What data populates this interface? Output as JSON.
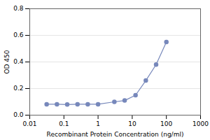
{
  "chart_data": {
    "type": "line",
    "x": [
      0.03125,
      0.0625,
      0.125,
      0.25,
      0.5,
      1.0,
      3.0,
      6.0,
      12.5,
      25.0,
      50.0,
      100.0
    ],
    "values": [
      0.082,
      0.082,
      0.08,
      0.082,
      0.082,
      0.082,
      0.1,
      0.11,
      0.15,
      0.26,
      0.38,
      0.55
    ],
    "color": "#7788bb",
    "marker": "circle",
    "xlabel": "Recombinant Protein Concentration (ng/ml)",
    "ylabel": "OD 450",
    "log": "x",
    "xlim": [
      0.01,
      1000
    ],
    "ylim": [
      0,
      0.8
    ],
    "xticks": [
      0.01,
      0.1,
      1,
      10,
      100,
      1000
    ],
    "yticks": [
      {
        "value": 0,
        "label": "0.0"
      },
      0.2,
      0.4,
      0.6,
      0.8
    ],
    "grid": "y"
  }
}
